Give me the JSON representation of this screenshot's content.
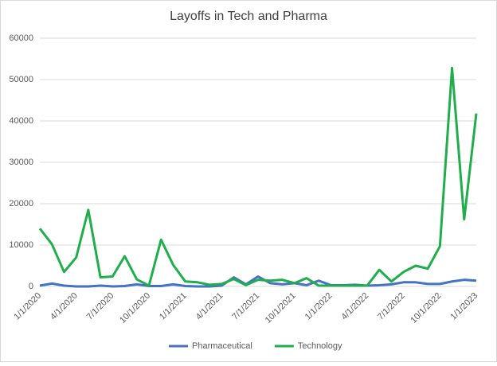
{
  "chart_data": {
    "type": "line",
    "title": "Layoffs in Tech and Pharma",
    "categories": [
      "1/1/2020",
      null,
      null,
      "4/1/2020",
      null,
      null,
      "7/1/2020",
      null,
      null,
      "10/1/2020",
      null,
      null,
      "1/1/2021",
      null,
      null,
      "4/1/2021",
      null,
      null,
      "7/1/2021",
      null,
      null,
      "10/1/2021",
      null,
      null,
      "1/1/2022",
      null,
      null,
      "4/1/2022",
      null,
      null,
      "7/1/2022",
      null,
      null,
      "10/1/2022",
      null,
      null,
      "1/1/2023"
    ],
    "series": [
      {
        "name": "Pharmaceutical",
        "color": "#4472c4",
        "values": [
          200,
          700,
          200,
          0,
          0,
          200,
          0,
          100,
          500,
          100,
          100,
          500,
          100,
          0,
          0,
          200,
          2200,
          500,
          2400,
          800,
          500,
          800,
          300,
          1400,
          300,
          300,
          400,
          200,
          300,
          500,
          1000,
          1000,
          600,
          600,
          1200,
          1600,
          1400
        ]
      },
      {
        "name": "Technology",
        "color": "#1fae4b",
        "values": [
          14000,
          10200,
          3500,
          7000,
          18500,
          2200,
          2400,
          7300,
          1700,
          200,
          11300,
          5200,
          1200,
          1000,
          400,
          600,
          1800,
          300,
          1600,
          1400,
          1600,
          800,
          2000,
          200,
          200,
          200,
          200,
          200,
          4000,
          1200,
          3500,
          5000,
          4300,
          9700,
          52800,
          16200,
          41800
        ]
      }
    ],
    "ylim": [
      0,
      60000
    ],
    "yticks": [
      0,
      10000,
      20000,
      30000,
      40000,
      50000,
      60000
    ],
    "grid": true,
    "legend": "bottom"
  }
}
